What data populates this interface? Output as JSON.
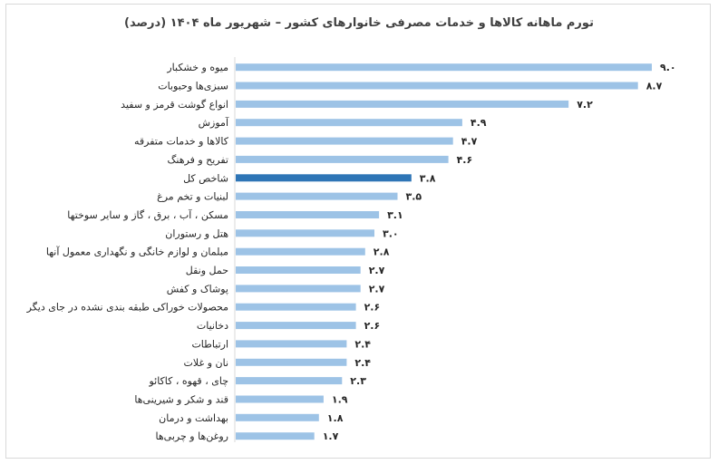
{
  "chart_data": {
    "type": "bar",
    "orientation": "horizontal",
    "title": "تورم ماهانه کالاها و خدمات مصرفی خانوارهای کشور – شهریور ماه ۱۴۰۴ (درصد)",
    "categories": [
      "میوه و خشکبار",
      "سبزی‌ها وحبوبات",
      "انواع گوشت قرمز و سفید",
      "آموزش",
      "کالاها و خدمات متفرقه",
      "تفریح و فرهنگ",
      "شاخص کل",
      "لبنیات و تخم مرغ",
      "مسکن ، آب ، برق ، گاز و سایر سوختها",
      "هتل و رستوران",
      "مبلمان و لوازم خانگی و نگهداری معمول آنها",
      "حمل ونقل",
      "پوشاک و کفش",
      "محصولات خوراکی طبقه بندی نشده در جای دیگر",
      "دخانیات",
      "ارتباطات",
      "نان و غلات",
      "چای ، قهوه ، کاکائو",
      "قند و شکر و شیرینی‌ها",
      "بهداشت و درمان",
      "روغن‌ها و چربی‌ها"
    ],
    "values": [
      9.0,
      8.7,
      7.2,
      4.9,
      4.7,
      4.6,
      3.8,
      3.5,
      3.1,
      3.0,
      2.8,
      2.7,
      2.7,
      2.6,
      2.6,
      2.4,
      2.4,
      2.3,
      1.9,
      1.8,
      1.7
    ],
    "value_labels": [
      "۹.۰",
      "۸.۷",
      "۷.۲",
      "۴.۹",
      "۴.۷",
      "۴.۶",
      "۳.۸",
      "۳.۵",
      "۳.۱",
      "۳.۰",
      "۲.۸",
      "۲.۷",
      "۲.۷",
      "۲.۶",
      "۲.۶",
      "۲.۴",
      "۲.۴",
      "۲.۳",
      "۱.۹",
      "۱.۸",
      "۱.۷"
    ],
    "highlight_category": "شاخص کل",
    "xlim": [
      0,
      9.0
    ],
    "grid": false,
    "legend": "none",
    "colors": {
      "bar": "#9dc3e6",
      "highlight": "#2e75b6"
    }
  }
}
